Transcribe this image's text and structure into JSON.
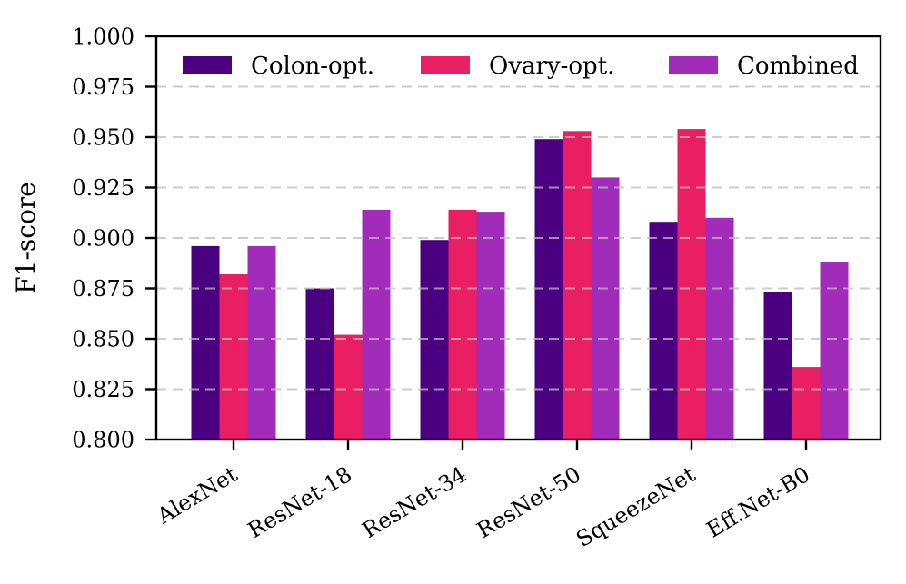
{
  "chart_data": {
    "type": "bar",
    "title": "",
    "xlabel": "",
    "ylabel": "F1-score",
    "categories": [
      "AlexNet",
      "ResNet-18",
      "ResNet-34",
      "ResNet-50",
      "SqueezeNet",
      "Eff.Net-B0"
    ],
    "series": [
      {
        "name": "Colon-opt.",
        "color": "#4B0082",
        "values": [
          0.896,
          0.875,
          0.899,
          0.949,
          0.908,
          0.873
        ]
      },
      {
        "name": "Ovary-opt.",
        "color": "#E91E63",
        "values": [
          0.882,
          0.852,
          0.914,
          0.953,
          0.954,
          0.836
        ]
      },
      {
        "name": "Combined",
        "color": "#A02CB9",
        "values": [
          0.896,
          0.914,
          0.913,
          0.93,
          0.91,
          0.888
        ]
      }
    ],
    "ylim": [
      0.8,
      1.0
    ],
    "yticks": [
      "0.800",
      "0.825",
      "0.850",
      "0.875",
      "0.900",
      "0.925",
      "0.950",
      "0.975",
      "1.000"
    ],
    "grid": "horizontal-dashed",
    "grid_color": "#BEBEBE",
    "axis_color": "#000000",
    "legend_position": "top-inside",
    "xtick_rotation_deg": 31
  }
}
